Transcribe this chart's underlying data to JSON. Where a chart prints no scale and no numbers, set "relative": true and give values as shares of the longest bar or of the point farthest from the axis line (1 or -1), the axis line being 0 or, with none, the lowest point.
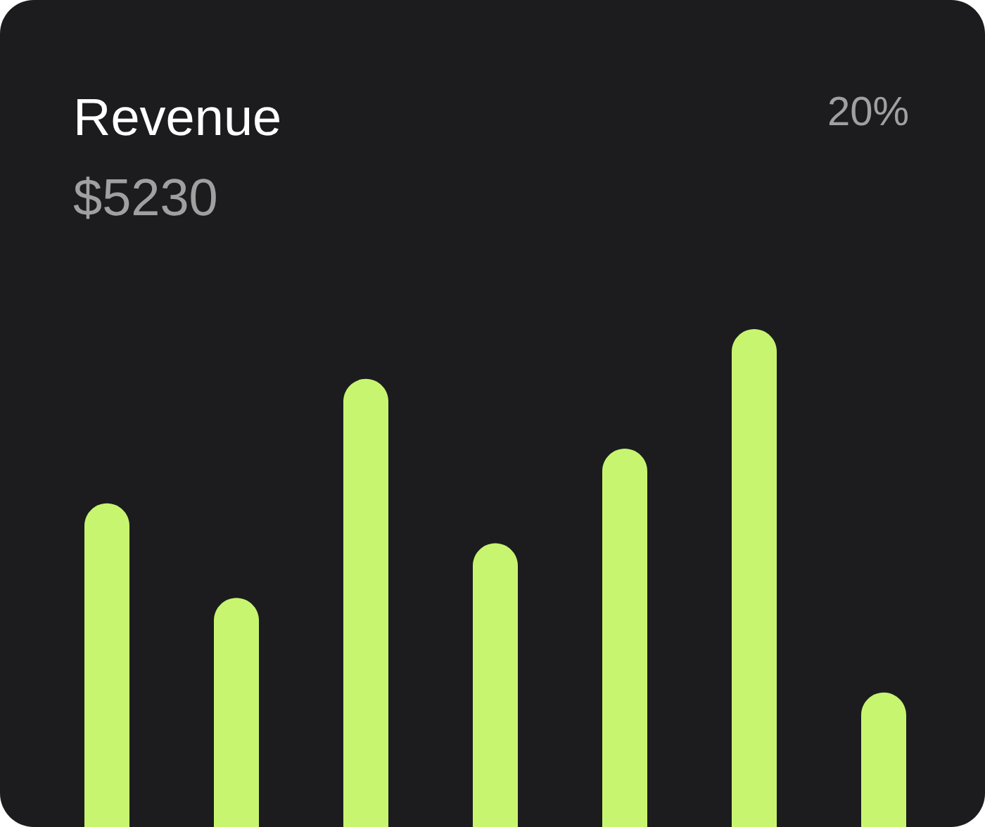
{
  "chart_data": {
    "type": "bar",
    "title": "Revenue",
    "subtitle": "$5230",
    "annotations": [
      "20%"
    ],
    "categories": [
      null,
      null,
      null,
      null,
      null,
      null,
      null
    ],
    "values": [
      0.65,
      0.46,
      0.9,
      0.57,
      0.76,
      1,
      0.27
    ],
    "color": "#c8f570",
    "relative": true
  }
}
